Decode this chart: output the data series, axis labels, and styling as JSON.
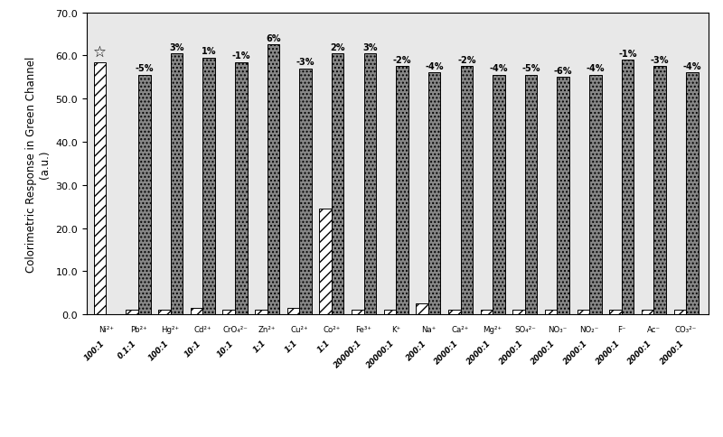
{
  "ions": [
    "Ni²⁺",
    "Pb²⁺",
    "Hg²⁺",
    "Cd²⁺",
    "CrO₄²⁻",
    "Zn²⁺",
    "Cu²⁺",
    "Co²⁺",
    "Fe³⁺",
    "K⁺",
    "Na⁺",
    "Ca²⁺",
    "Mg²⁺",
    "SO₄²⁻",
    "NO₃⁻",
    "NO₂⁻",
    "F⁻",
    "Ac⁻",
    "CO₃²⁻"
  ],
  "ratios": [
    "100:1",
    "0.1:1",
    "100:1",
    "10:1",
    "10:1",
    "1:1",
    "1:1",
    "1:1",
    "20000:1",
    "20000:1",
    "200:1",
    "2000:1",
    "2000:1",
    "2000:1",
    "2000:1",
    "2000:1",
    "2000:1",
    "2000:1",
    "2000:1"
  ],
  "bar1_heights": [
    58.5,
    1.0,
    1.0,
    1.5,
    1.0,
    1.0,
    1.5,
    24.5,
    1.0,
    1.0,
    2.5,
    1.0,
    1.0,
    1.0,
    1.0,
    1.0,
    1.0,
    1.0,
    1.0
  ],
  "bar2_heights": [
    0.0,
    55.5,
    60.5,
    59.5,
    58.5,
    62.5,
    57.0,
    60.5,
    60.5,
    57.5,
    56.0,
    57.5,
    55.5,
    55.5,
    55.0,
    55.5,
    59.0,
    57.5,
    56.0
  ],
  "percentages": [
    null,
    "-5%",
    "3%",
    "1%",
    "-1%",
    "6%",
    "-3%",
    "2%",
    "3%",
    "-2%",
    "-4%",
    "-2%",
    "-4%",
    "-5%",
    "-6%",
    "-4%",
    "-1%",
    "-3%",
    "-4%"
  ],
  "star_label": "☆",
  "ylim": [
    0,
    70
  ],
  "yticks": [
    0.0,
    10.0,
    20.0,
    30.0,
    40.0,
    50.0,
    60.0,
    70.0
  ],
  "ylabel": "Colorimetric Response in Green Channel\n(a.u.)",
  "bar1_color": "#ffffff",
  "bar1_hatch": "///",
  "bar2_color": "#888888",
  "bar2_hatch": "....",
  "bar_edge_color": "#000000",
  "bar_width": 0.38,
  "figsize": [
    8.0,
    4.85
  ],
  "dpi": 100
}
